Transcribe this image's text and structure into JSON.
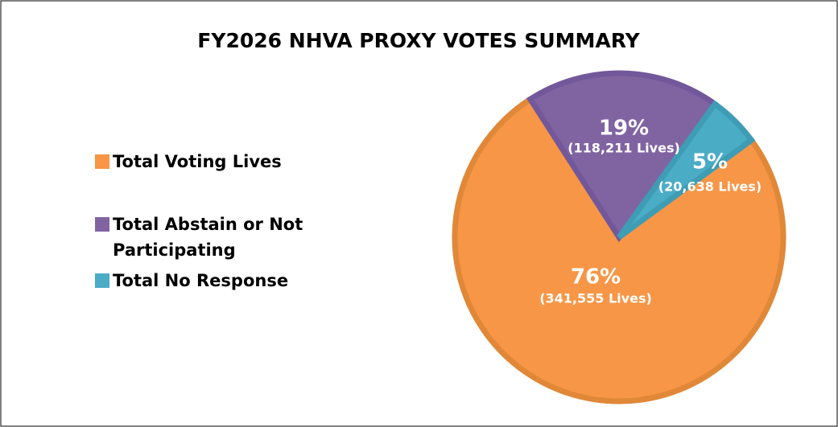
{
  "chart_data": {
    "type": "pie",
    "title": "FY2026 NHVA PROXY VOTES SUMMARY",
    "categories": [
      "Total Voting Lives",
      "Total Abstain or Not Participating",
      "Total No Response"
    ],
    "values": [
      76,
      19,
      5
    ],
    "value_labels": [
      "76%",
      "19%",
      "5%"
    ],
    "lives_labels": [
      "(341,555 Lives)",
      "(118,211 Lives)",
      "(20,638 Lives)"
    ],
    "colors": [
      "#F79646",
      "#8064A2",
      "#4BACC6"
    ],
    "legend": "left"
  }
}
